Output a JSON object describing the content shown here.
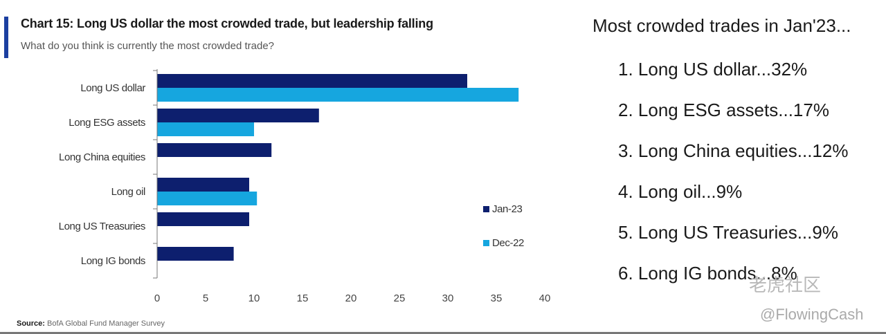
{
  "chart_data": {
    "type": "bar",
    "orientation": "horizontal",
    "title": "Chart 15: Long US dollar the most crowded trade, but leadership falling",
    "subtitle": "What do you think is currently the most crowded trade?",
    "categories": [
      "Long US dollar",
      "Long ESG assets",
      "Long China equities",
      "Long oil",
      "Long US Treasuries",
      "Long IG bonds"
    ],
    "series": [
      {
        "name": "Jan-23",
        "color": "#0d1f6e",
        "values": [
          32,
          16.7,
          11.8,
          9.5,
          9.5,
          7.9
        ]
      },
      {
        "name": "Dec-22",
        "color": "#16a6df",
        "values": [
          37.3,
          10,
          null,
          10.3,
          null,
          null
        ]
      }
    ],
    "xticks": [
      0,
      5,
      10,
      15,
      20,
      25,
      30,
      35,
      40
    ],
    "xlim": [
      0,
      40
    ],
    "grid": false,
    "legend_position": "right"
  },
  "source": {
    "label": "Source:",
    "text": "BofA Global Fund Manager Survey"
  },
  "side": {
    "title": "Most crowded trades in Jan'23...",
    "items": [
      "1. Long US dollar...32%",
      "2. Long ESG assets...17%",
      "3. Long China equities...12%",
      "4. Long oil...9%",
      "5. Long US Treasuries...9%",
      "6. Long IG bonds...8%"
    ]
  },
  "watermark": {
    "logo": "老虎社区",
    "handle": "@FlowingCash"
  }
}
